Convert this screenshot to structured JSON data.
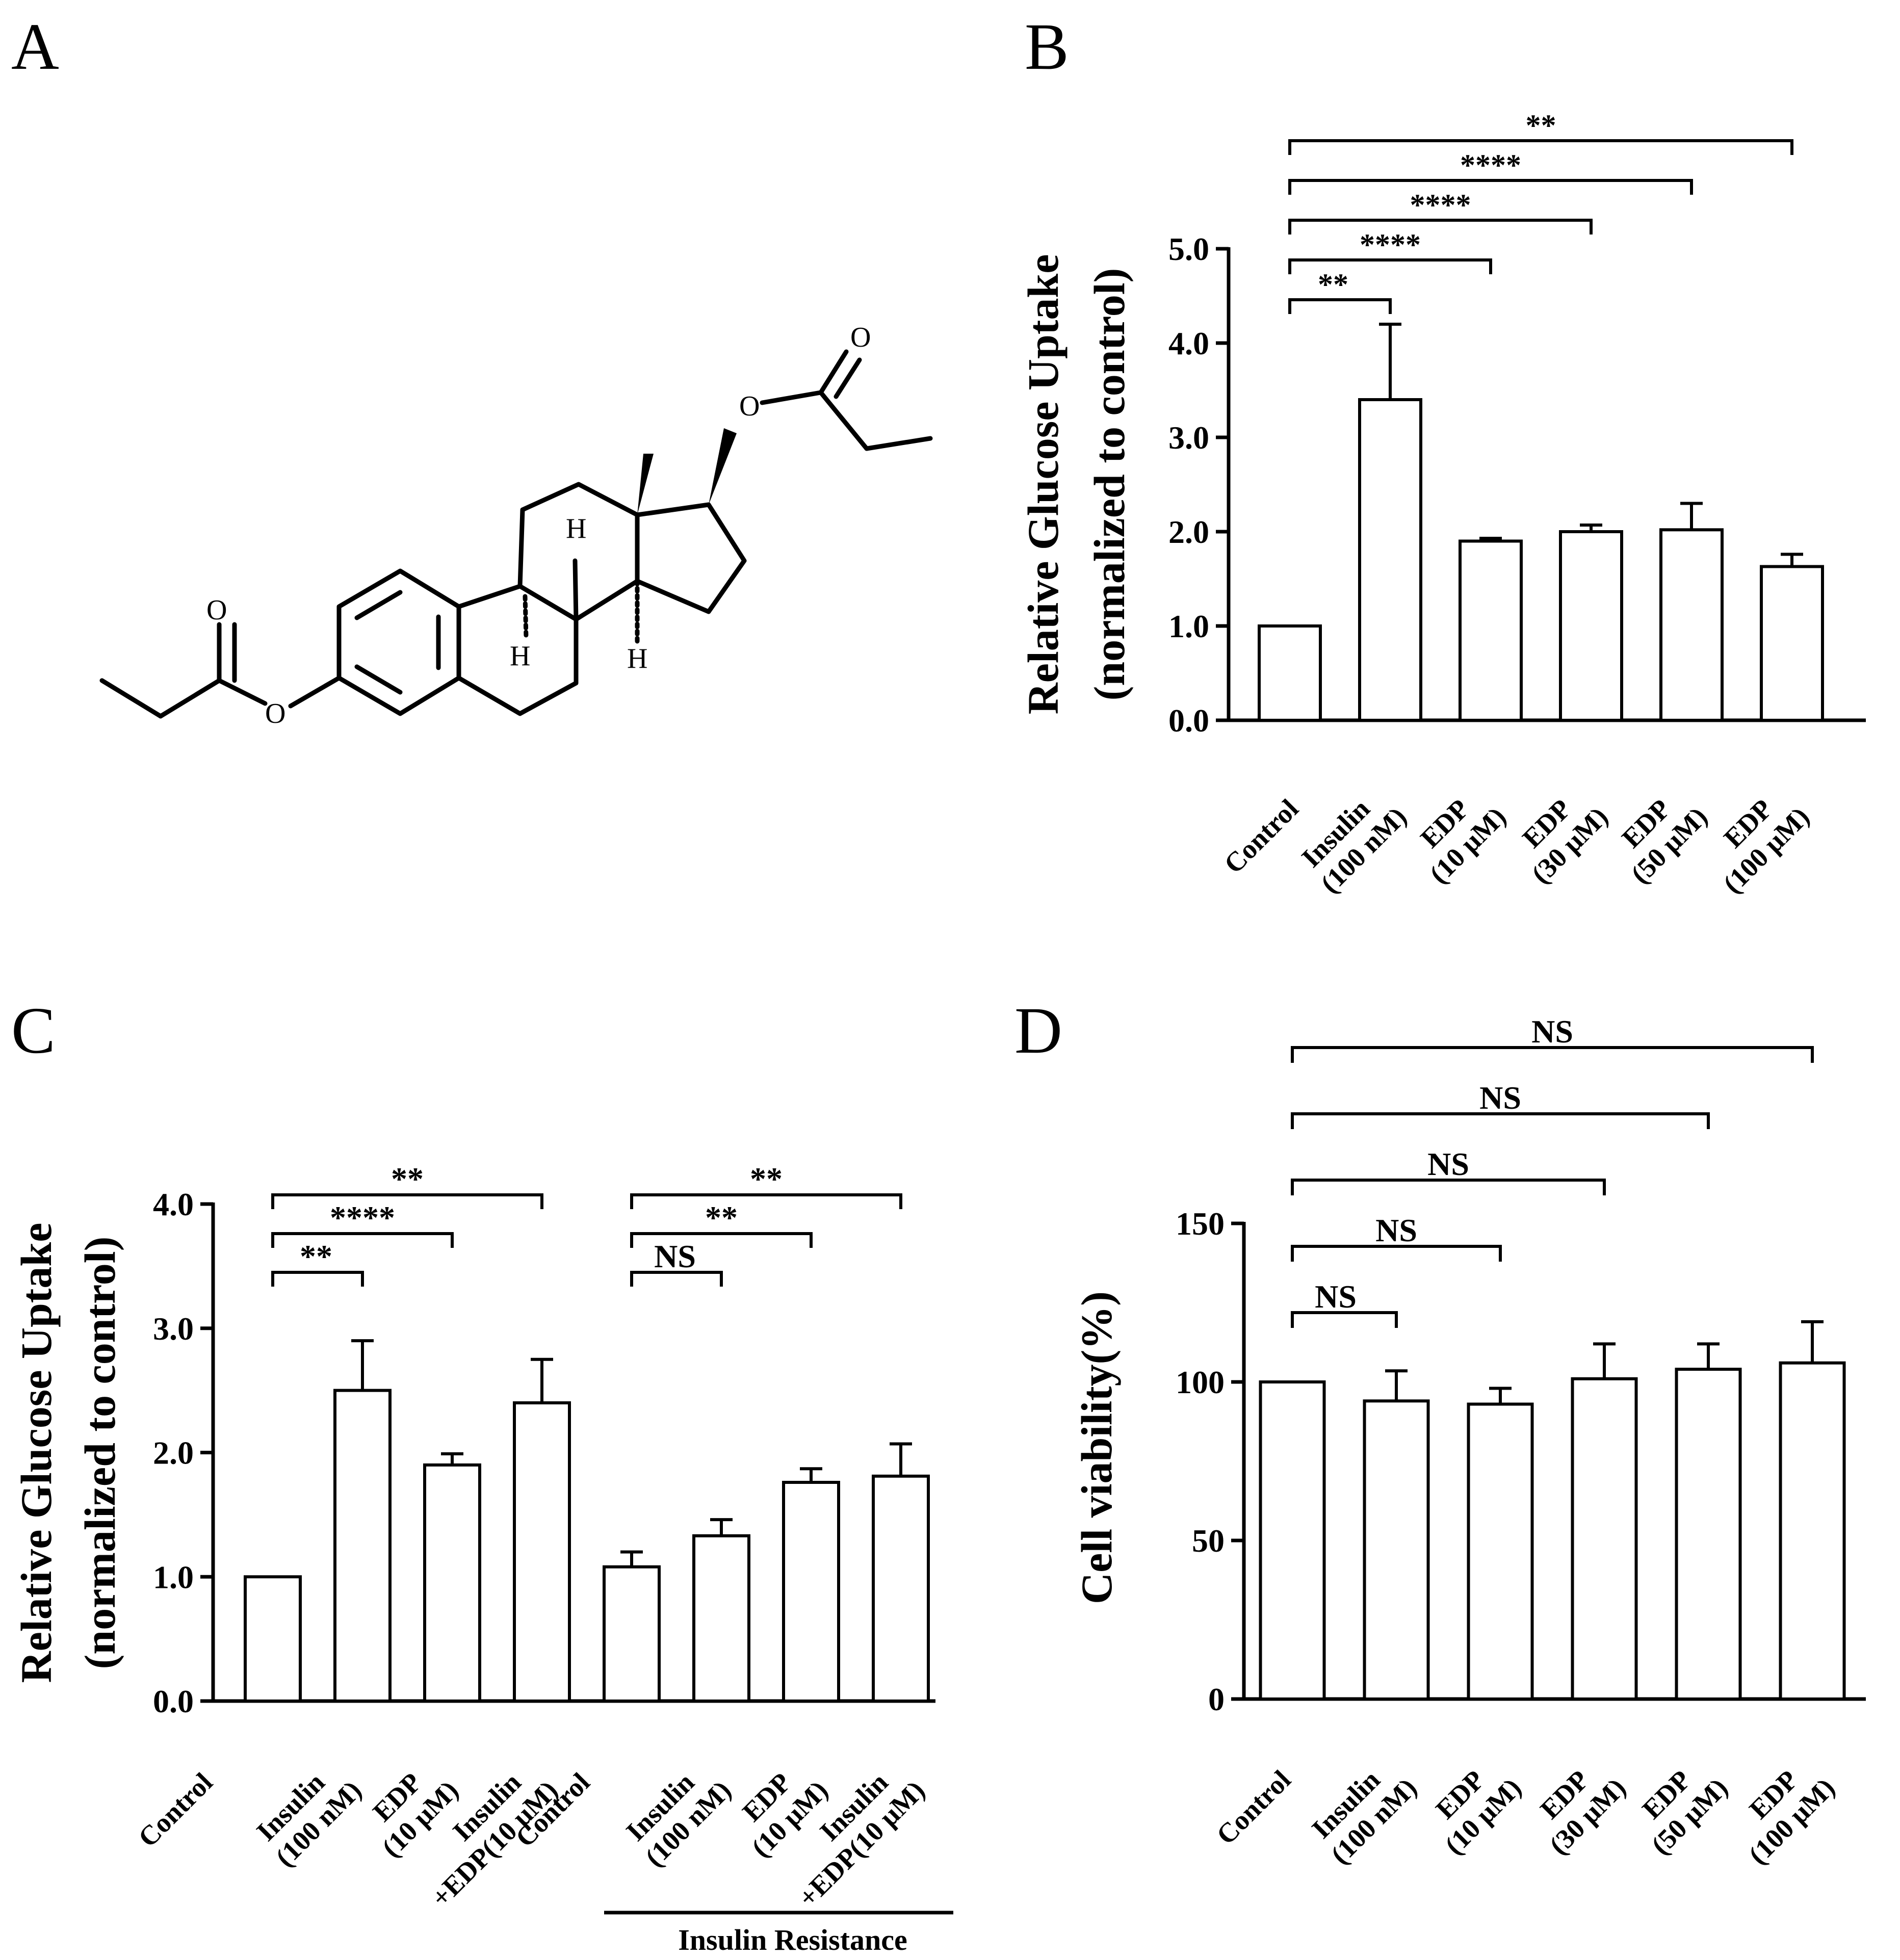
{
  "panels": {
    "A": {
      "letter": "A",
      "atoms": {
        "o1": "O",
        "o2": "O",
        "o3": "O",
        "o4": "O",
        "h1": "H",
        "h2": "H",
        "h3": "H"
      }
    },
    "B": {
      "letter": "B"
    },
    "C": {
      "letter": "C",
      "group_label": "Insulin Resistance"
    },
    "D": {
      "letter": "D"
    }
  },
  "chart_data": [
    {
      "panel": "B",
      "type": "bar",
      "ylabel_lines": [
        "Relative Glucose Uptake",
        "(normalized to control)"
      ],
      "ylim": [
        0,
        5.0
      ],
      "yticks": [
        "0.0",
        "1.0",
        "2.0",
        "3.0",
        "4.0",
        "5.0"
      ],
      "categories": [
        [
          "Control"
        ],
        [
          "Insulin",
          "(100 nM)"
        ],
        [
          "EDP",
          "(10 μM)"
        ],
        [
          "EDP",
          "(30 μM)"
        ],
        [
          "EDP",
          "(50 μM)"
        ],
        [
          "EDP",
          "(100 μM)"
        ]
      ],
      "values": [
        1.0,
        3.4,
        1.9,
        2.0,
        2.02,
        1.63
      ],
      "errors": [
        0,
        0.8,
        0.03,
        0.07,
        0.28,
        0.13
      ],
      "significance": [
        {
          "from": 0,
          "to": 1,
          "label": "**"
        },
        {
          "from": 0,
          "to": 2,
          "label": "****"
        },
        {
          "from": 0,
          "to": 3,
          "label": "****"
        },
        {
          "from": 0,
          "to": 4,
          "label": "****"
        },
        {
          "from": 0,
          "to": 5,
          "label": "**"
        }
      ]
    },
    {
      "panel": "C",
      "type": "bar",
      "ylabel_lines": [
        "Relative Glucose Uptake",
        "(normalized to control)"
      ],
      "ylim": [
        0,
        4.0
      ],
      "yticks": [
        "0.0",
        "1.0",
        "2.0",
        "3.0",
        "4.0"
      ],
      "categories": [
        [
          "Control"
        ],
        [
          "Insulin",
          "(100 nM)"
        ],
        [
          "EDP",
          "(10 μM)"
        ],
        [
          "Insulin",
          "+EDP(10 μM)"
        ],
        [
          "Control"
        ],
        [
          "Insulin",
          "(100 nM)"
        ],
        [
          "EDP",
          "(10 μM)"
        ],
        [
          "Insulin",
          "+EDP(10 μM)"
        ]
      ],
      "values": [
        1.0,
        2.5,
        1.9,
        2.4,
        1.08,
        1.33,
        1.76,
        1.81
      ],
      "errors": [
        0,
        0.4,
        0.09,
        0.35,
        0.12,
        0.13,
        0.11,
        0.26
      ],
      "significance": [
        {
          "from": 0,
          "to": 1,
          "label": "**"
        },
        {
          "from": 0,
          "to": 2,
          "label": "****"
        },
        {
          "from": 0,
          "to": 3,
          "label": "**"
        },
        {
          "from": 4,
          "to": 5,
          "label": "NS"
        },
        {
          "from": 4,
          "to": 6,
          "label": "**"
        },
        {
          "from": 4,
          "to": 7,
          "label": "**"
        }
      ]
    },
    {
      "panel": "D",
      "type": "bar",
      "ylabel_lines": [
        "Cell viability(%)"
      ],
      "ylim": [
        0,
        150
      ],
      "yticks": [
        "0",
        "50",
        "100",
        "150"
      ],
      "categories": [
        [
          "Control"
        ],
        [
          "Insulin",
          "(100 nM)"
        ],
        [
          "EDP",
          "(10 μM)"
        ],
        [
          "EDP",
          "(30 μM)"
        ],
        [
          "EDP",
          "(50 μM)"
        ],
        [
          "EDP",
          "(100 μM)"
        ]
      ],
      "values": [
        100,
        94,
        93,
        101,
        104,
        106
      ],
      "errors": [
        0,
        9.5,
        5,
        11,
        8,
        13
      ],
      "significance": [
        {
          "from": 0,
          "to": 1,
          "label": "NS"
        },
        {
          "from": 0,
          "to": 2,
          "label": "NS"
        },
        {
          "from": 0,
          "to": 3,
          "label": "NS"
        },
        {
          "from": 0,
          "to": 4,
          "label": "NS"
        },
        {
          "from": 0,
          "to": 5,
          "label": "NS"
        }
      ]
    }
  ]
}
